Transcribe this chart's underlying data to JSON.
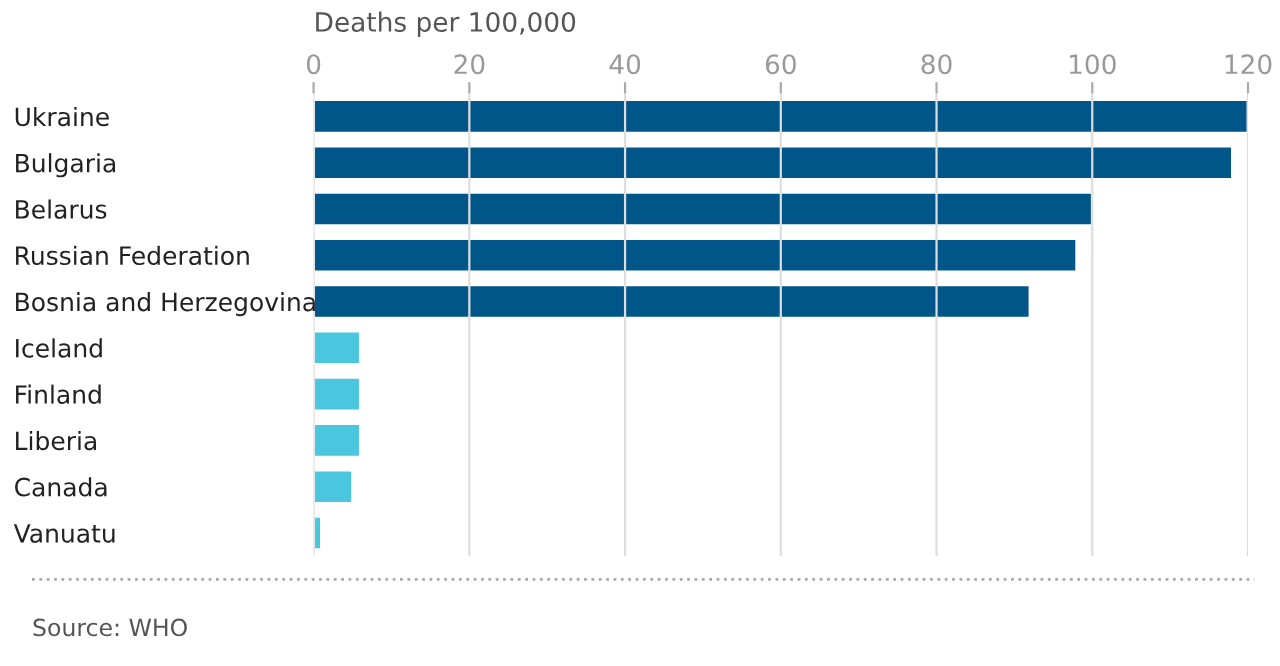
{
  "chart_data": {
    "type": "bar",
    "orientation": "horizontal",
    "xlabel": "Deaths per 100,000",
    "categories": [
      "Ukraine",
      "Bulgaria",
      "Belarus",
      "Russian Federation",
      "Bosnia and Herzegovina",
      "Iceland",
      "Finland",
      "Liberia",
      "Canada",
      "Vanuatu"
    ],
    "values": [
      120,
      118,
      100,
      98,
      92,
      6,
      6,
      6,
      5,
      1
    ],
    "colors": [
      "#005689",
      "#005689",
      "#005689",
      "#005689",
      "#005689",
      "#4bc6df",
      "#4bc6df",
      "#4bc6df",
      "#4bc6df",
      "#4bc6df"
    ],
    "xlim": [
      0,
      120
    ],
    "xticks": [
      0,
      20,
      40,
      60,
      80,
      100,
      120
    ],
    "grid": "x",
    "annotations": [
      "Source: WHO"
    ]
  }
}
